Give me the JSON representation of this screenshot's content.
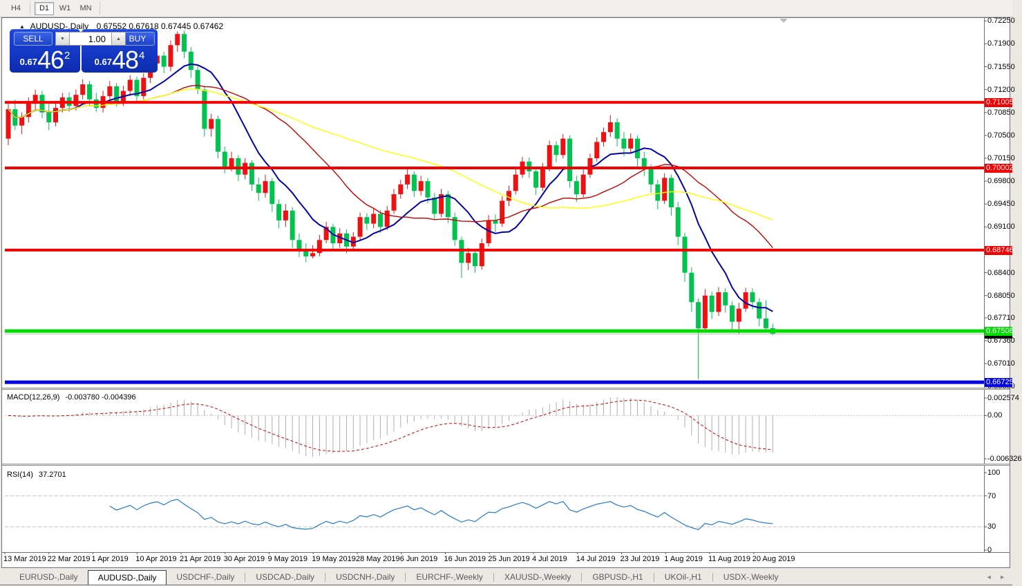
{
  "toolbar": {
    "timeframes": [
      {
        "label": "H4",
        "active": false
      },
      {
        "label": "D1",
        "active": true
      },
      {
        "label": "W1",
        "active": false
      },
      {
        "label": "MN",
        "active": false
      }
    ]
  },
  "icons": {
    "collapse": "▲",
    "spinner_down": "▼",
    "spinner_up": "▲",
    "shift_marker": "▼",
    "tab_scroll": "◄ ►"
  },
  "chart": {
    "symbol_header": {
      "title": "AUDUSD-,Daily",
      "ohlc": "0.67552 0.67618 0.67445 0.67462"
    },
    "trade_panel": {
      "sell_label": "SELL",
      "buy_label": "BUY",
      "lot_value": "1.00",
      "sell_price_prefix": "0.67",
      "sell_price_big": "46",
      "sell_price_sup": "2",
      "buy_price_prefix": "0.67",
      "buy_price_big": "48",
      "buy_price_sup": "4"
    },
    "price_axis": {
      "ticks": [
        "0.72250",
        "0.71900",
        "0.71550",
        "0.71200",
        "0.70850",
        "0.70500",
        "0.70150",
        "0.69800",
        "0.69450",
        "0.69100",
        "0.68400",
        "0.68050",
        "0.67710",
        "0.67360",
        "0.67010",
        "0.66660"
      ]
    },
    "hlines": [
      {
        "price": 0.71005,
        "label": "0.71005",
        "color": "#F40000",
        "thickness": 4
      },
      {
        "price": 0.70002,
        "label": "0.70002",
        "color": "#F40000",
        "thickness": 4
      },
      {
        "price": 0.68746,
        "label": "0.68746",
        "color": "#F40000",
        "thickness": 4
      },
      {
        "price": 0.67508,
        "label": "0.67508",
        "color": "#00DC00",
        "thickness": 5
      },
      {
        "price": 0.66725,
        "label": "0.66725",
        "color": "#0000E6",
        "thickness": 5
      }
    ],
    "current_price": {
      "price": 0.67462,
      "label": "0.67462",
      "line_color": "#C0C0C0",
      "badge_bg": "#000000"
    },
    "date_axis": [
      "13 Mar 2019",
      "22 Mar 2019",
      "1 Apr 2019",
      "10 Apr 2019",
      "21 Apr 2019",
      "30 Apr 2019",
      "9 May 2019",
      "19 May 2019",
      "28 May 2019",
      "6 Jun 2019",
      "16 Jun 2019",
      "25 Jun 2019",
      "4 Jul 2019",
      "14 Jul 2019",
      "23 Jul 2019",
      "1 Aug 2019",
      "11 Aug 2019",
      "20 Aug 2019"
    ]
  },
  "colors": {
    "bull": "#EE1111",
    "bear": "#00C24E",
    "ma_fast": "#0000A8",
    "ma_mid": "#C80000",
    "ma_slow": "#FFFF00",
    "macd_hist": "#ADADAD",
    "macd_signal": "#D00000",
    "rsi_line": "#2479D0",
    "level_dash": "#C4C4C4",
    "panel_blue": "#1434C8"
  },
  "macd": {
    "label": "MACD(12,26,9)",
    "value": "-0.003780 -0.004396",
    "params": [
      12,
      26,
      9
    ],
    "axis": [
      {
        "label": "0.002574",
        "value": 0.002574
      },
      {
        "label": "0.00",
        "value": 0.0
      },
      {
        "label": "-0.006326",
        "value": -0.006326
      }
    ]
  },
  "rsi": {
    "label": "RSI(14)",
    "value": "37.2701",
    "period": 14,
    "levels": [
      70,
      30
    ],
    "axis": [
      {
        "label": "100",
        "value": 100
      },
      {
        "label": "70",
        "value": 70
      },
      {
        "label": "30",
        "value": 30
      },
      {
        "label": "0",
        "value": 0
      }
    ]
  },
  "tabs": {
    "items": [
      {
        "label": "EURUSD-,Daily",
        "active": false
      },
      {
        "label": "AUDUSD-,Daily",
        "active": true
      },
      {
        "label": "USDCHF-,Daily",
        "active": false
      },
      {
        "label": "USDCAD-,Daily",
        "active": false
      },
      {
        "label": "USDCNH-,Daily",
        "active": false
      },
      {
        "label": "EURCHF-,Weekly",
        "active": false
      },
      {
        "label": "XAUUSD-,Weekly",
        "active": false
      },
      {
        "label": "GBPUSD-,H1",
        "active": false
      },
      {
        "label": "UKOil-,H1",
        "active": false
      },
      {
        "label": "USDX-,Weekly",
        "active": false
      }
    ]
  },
  "chart_data": {
    "type": "candlestick",
    "symbol": "AUDUSD",
    "timeframe": "Daily",
    "visible_range": {
      "first_label": "13 Mar 2019",
      "last_label": "20 Aug 2019",
      "price_min": 0.6666,
      "price_max": 0.7225
    },
    "ohlc": [
      [
        0.7045,
        0.7098,
        0.7035,
        0.709
      ],
      [
        0.709,
        0.7105,
        0.7058,
        0.7065
      ],
      [
        0.7065,
        0.7085,
        0.7052,
        0.7078
      ],
      [
        0.7078,
        0.7108,
        0.707,
        0.71
      ],
      [
        0.71,
        0.712,
        0.7087,
        0.7112
      ],
      [
        0.7112,
        0.7118,
        0.7076,
        0.7085
      ],
      [
        0.7085,
        0.7098,
        0.7058,
        0.707
      ],
      [
        0.707,
        0.71,
        0.7064,
        0.7092
      ],
      [
        0.7092,
        0.7115,
        0.7085,
        0.7108
      ],
      [
        0.7108,
        0.7116,
        0.7086,
        0.7095
      ],
      [
        0.7095,
        0.712,
        0.7088,
        0.7112
      ],
      [
        0.7112,
        0.7136,
        0.7105,
        0.7128
      ],
      [
        0.7128,
        0.7133,
        0.7096,
        0.7105
      ],
      [
        0.7105,
        0.7115,
        0.7086,
        0.7092
      ],
      [
        0.7092,
        0.7118,
        0.7085,
        0.711
      ],
      [
        0.711,
        0.7133,
        0.7102,
        0.7125
      ],
      [
        0.7125,
        0.713,
        0.7094,
        0.7102
      ],
      [
        0.7102,
        0.7126,
        0.7095,
        0.7118
      ],
      [
        0.7118,
        0.7142,
        0.711,
        0.7135
      ],
      [
        0.7135,
        0.714,
        0.7102,
        0.711
      ],
      [
        0.711,
        0.7145,
        0.7105,
        0.7138
      ],
      [
        0.7138,
        0.7168,
        0.713,
        0.716
      ],
      [
        0.716,
        0.7179,
        0.715,
        0.7172
      ],
      [
        0.7172,
        0.7178,
        0.7145,
        0.7155
      ],
      [
        0.7155,
        0.7195,
        0.7148,
        0.7188
      ],
      [
        0.7188,
        0.7209,
        0.7178,
        0.7205
      ],
      [
        0.7205,
        0.721,
        0.7168,
        0.7178
      ],
      [
        0.7178,
        0.7185,
        0.7138,
        0.715
      ],
      [
        0.715,
        0.7156,
        0.7113,
        0.712
      ],
      [
        0.712,
        0.7126,
        0.7048,
        0.706
      ],
      [
        0.706,
        0.7083,
        0.7048,
        0.7075
      ],
      [
        0.7075,
        0.708,
        0.7015,
        0.7025
      ],
      [
        0.7025,
        0.7033,
        0.6992,
        0.7002
      ],
      [
        0.7002,
        0.7025,
        0.6995,
        0.7015
      ],
      [
        0.7015,
        0.702,
        0.698,
        0.699
      ],
      [
        0.699,
        0.7015,
        0.6983,
        0.7008
      ],
      [
        0.7008,
        0.7012,
        0.6965,
        0.6975
      ],
      [
        0.6975,
        0.6985,
        0.695,
        0.6962
      ],
      [
        0.6962,
        0.699,
        0.6955,
        0.698
      ],
      [
        0.698,
        0.6985,
        0.6933,
        0.6945
      ],
      [
        0.6945,
        0.6952,
        0.6908,
        0.692
      ],
      [
        0.692,
        0.6945,
        0.691,
        0.6935
      ],
      [
        0.6935,
        0.694,
        0.6878,
        0.689
      ],
      [
        0.689,
        0.69,
        0.6864,
        0.6875
      ],
      [
        0.6875,
        0.6885,
        0.6856,
        0.6865
      ],
      [
        0.6865,
        0.6882,
        0.6862,
        0.687
      ],
      [
        0.687,
        0.6898,
        0.6865,
        0.689
      ],
      [
        0.689,
        0.6918,
        0.6885,
        0.691
      ],
      [
        0.691,
        0.6915,
        0.6876,
        0.6885
      ],
      [
        0.6885,
        0.6908,
        0.6878,
        0.69
      ],
      [
        0.69,
        0.6906,
        0.687,
        0.688
      ],
      [
        0.688,
        0.6902,
        0.6874,
        0.6895
      ],
      [
        0.6895,
        0.6932,
        0.689,
        0.6925
      ],
      [
        0.6925,
        0.6931,
        0.6905,
        0.6915
      ],
      [
        0.6915,
        0.6938,
        0.6908,
        0.693
      ],
      [
        0.693,
        0.6936,
        0.6901,
        0.691
      ],
      [
        0.691,
        0.6942,
        0.6905,
        0.6935
      ],
      [
        0.6935,
        0.6968,
        0.693,
        0.696
      ],
      [
        0.696,
        0.6982,
        0.6953,
        0.6975
      ],
      [
        0.6975,
        0.6998,
        0.6968,
        0.699
      ],
      [
        0.699,
        0.6995,
        0.6956,
        0.6965
      ],
      [
        0.6965,
        0.6988,
        0.6958,
        0.698
      ],
      [
        0.698,
        0.6985,
        0.6946,
        0.6955
      ],
      [
        0.6955,
        0.6962,
        0.6921,
        0.693
      ],
      [
        0.693,
        0.6968,
        0.6925,
        0.696
      ],
      [
        0.696,
        0.6965,
        0.6916,
        0.6925
      ],
      [
        0.6925,
        0.6932,
        0.6881,
        0.689
      ],
      [
        0.689,
        0.6895,
        0.6832,
        0.6855
      ],
      [
        0.6855,
        0.6878,
        0.6844,
        0.687
      ],
      [
        0.687,
        0.6876,
        0.684,
        0.685
      ],
      [
        0.685,
        0.6892,
        0.6845,
        0.6885
      ],
      [
        0.6885,
        0.6928,
        0.688,
        0.692
      ],
      [
        0.692,
        0.6929,
        0.6902,
        0.6915
      ],
      [
        0.6915,
        0.6957,
        0.691,
        0.695
      ],
      [
        0.695,
        0.6973,
        0.6942,
        0.6965
      ],
      [
        0.6965,
        0.6998,
        0.696,
        0.699
      ],
      [
        0.699,
        0.7017,
        0.6985,
        0.701
      ],
      [
        0.701,
        0.7016,
        0.6985,
        0.6995
      ],
      [
        0.6995,
        0.7001,
        0.6959,
        0.697
      ],
      [
        0.697,
        0.7008,
        0.6965,
        0.7
      ],
      [
        0.7,
        0.7042,
        0.6995,
        0.7035
      ],
      [
        0.7035,
        0.7041,
        0.7009,
        0.702
      ],
      [
        0.702,
        0.7052,
        0.7015,
        0.7045
      ],
      [
        0.7045,
        0.705,
        0.697,
        0.698
      ],
      [
        0.698,
        0.6988,
        0.6948,
        0.696
      ],
      [
        0.696,
        0.6998,
        0.6955,
        0.699
      ],
      [
        0.699,
        0.7022,
        0.6985,
        0.7015
      ],
      [
        0.7015,
        0.7047,
        0.701,
        0.704
      ],
      [
        0.704,
        0.7062,
        0.7033,
        0.7055
      ],
      [
        0.7055,
        0.7081,
        0.7048,
        0.707
      ],
      [
        0.707,
        0.7076,
        0.7033,
        0.7045
      ],
      [
        0.7045,
        0.7055,
        0.7018,
        0.703
      ],
      [
        0.703,
        0.7053,
        0.7023,
        0.7045
      ],
      [
        0.7045,
        0.705,
        0.7002,
        0.7015
      ],
      [
        0.7015,
        0.7025,
        0.6988,
        0.7
      ],
      [
        0.7,
        0.7006,
        0.6962,
        0.6975
      ],
      [
        0.6975,
        0.6982,
        0.6937,
        0.695
      ],
      [
        0.695,
        0.6992,
        0.6945,
        0.6985
      ],
      [
        0.6985,
        0.699,
        0.6927,
        0.694
      ],
      [
        0.694,
        0.6948,
        0.6882,
        0.6895
      ],
      [
        0.6895,
        0.6901,
        0.6826,
        0.684
      ],
      [
        0.684,
        0.6848,
        0.678,
        0.6795
      ],
      [
        0.6795,
        0.6801,
        0.6677,
        0.6755
      ],
      [
        0.6755,
        0.6815,
        0.6748,
        0.6805
      ],
      [
        0.6805,
        0.6811,
        0.6769,
        0.678
      ],
      [
        0.678,
        0.6818,
        0.6774,
        0.681
      ],
      [
        0.681,
        0.6816,
        0.6779,
        0.679
      ],
      [
        0.679,
        0.6796,
        0.6752,
        0.6765
      ],
      [
        0.6765,
        0.6794,
        0.6747,
        0.6785
      ],
      [
        0.6785,
        0.6817,
        0.678,
        0.681
      ],
      [
        0.681,
        0.6816,
        0.6784,
        0.6795
      ],
      [
        0.6795,
        0.6801,
        0.6758,
        0.677
      ],
      [
        0.677,
        0.6798,
        0.6748,
        0.67552
      ],
      [
        0.67552,
        0.67618,
        0.67445,
        0.67462
      ]
    ],
    "overlays": [
      {
        "name": "ma-fast",
        "type": "sma",
        "period": 10,
        "color": "#0000A8"
      },
      {
        "name": "ma-mid",
        "type": "sma",
        "period": 25,
        "color": "#C80000"
      },
      {
        "name": "ma-slow",
        "type": "sma",
        "period": 50,
        "color": "#FFFF00"
      }
    ],
    "indicators": [
      {
        "name": "MACD",
        "params": [
          12,
          26,
          9
        ],
        "last_values": [
          -0.00378,
          -0.004396
        ],
        "scale_max": 0.002574,
        "scale_min": -0.006326
      },
      {
        "name": "RSI",
        "params": [
          14
        ],
        "last_value": 37.2701,
        "levels": [
          70,
          30
        ],
        "scale_max": 100,
        "scale_min": 0
      }
    ]
  }
}
